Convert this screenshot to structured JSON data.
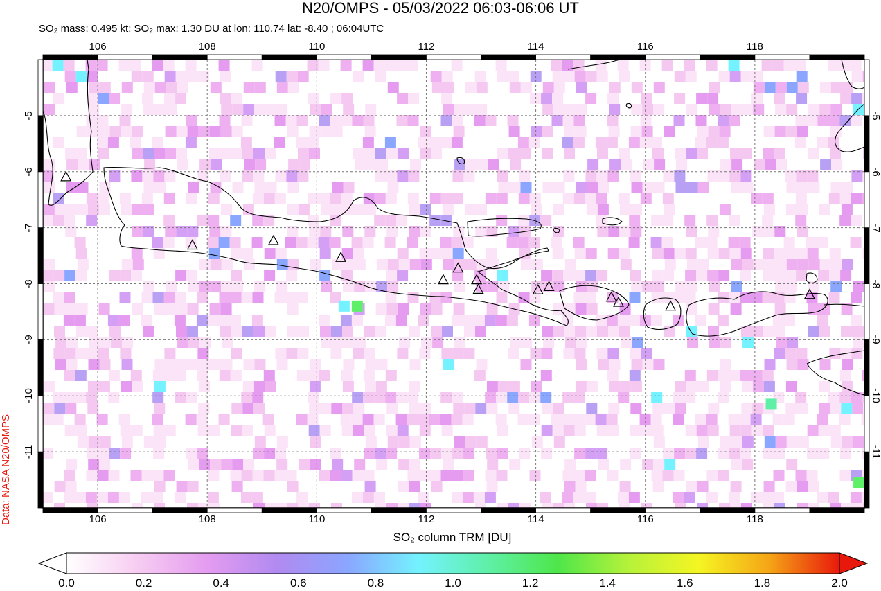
{
  "title": "N20/OMPS - 05/03/2022 06:03-06:06 UT",
  "subtitle": "SO₂ mass: 0.495 kt; SO₂ max: 1.30 DU at lon: 110.74 lat: -8.40 ; 06:04UTC",
  "credit": "Data: NASA N20/OMPS",
  "map": {
    "lon_range": [
      105,
      120
    ],
    "lat_range": [
      -12,
      -4
    ],
    "lon_ticks": [
      "106",
      "108",
      "110",
      "112",
      "114",
      "116",
      "118"
    ],
    "lat_ticks": [
      "-5",
      "-6",
      "-7",
      "-8",
      "-9",
      "-10",
      "-11"
    ],
    "grid": "dashed",
    "volcano_marker": "triangle-outline-icon",
    "volcanoes_lonlat": [
      [
        105.42,
        -6.1
      ],
      [
        107.73,
        -7.32
      ],
      [
        109.21,
        -7.24
      ],
      [
        110.44,
        -7.54
      ],
      [
        112.31,
        -7.94
      ],
      [
        112.58,
        -7.73
      ],
      [
        112.92,
        -7.94
      ],
      [
        112.95,
        -8.11
      ],
      [
        114.04,
        -8.12
      ],
      [
        114.24,
        -8.06
      ],
      [
        115.38,
        -8.25
      ],
      [
        115.51,
        -8.34
      ],
      [
        116.46,
        -8.41
      ],
      [
        119.0,
        -8.2
      ]
    ]
  },
  "colorbar": {
    "title": "SO₂ column TRM [DU]",
    "labels": [
      "0.0",
      "0.2",
      "0.4",
      "0.6",
      "0.8",
      "1.0",
      "1.2",
      "1.4",
      "1.6",
      "1.8",
      "2.0"
    ],
    "range": [
      0.0,
      2.0
    ],
    "colors": [
      "#ffffff",
      "#f7cdf2",
      "#e49cf0",
      "#b18af0",
      "#8aa6ff",
      "#74f2ff",
      "#5ff0a8",
      "#4ee64a",
      "#b6f23a",
      "#f5f523",
      "#f5a516",
      "#e8190c"
    ]
  }
}
